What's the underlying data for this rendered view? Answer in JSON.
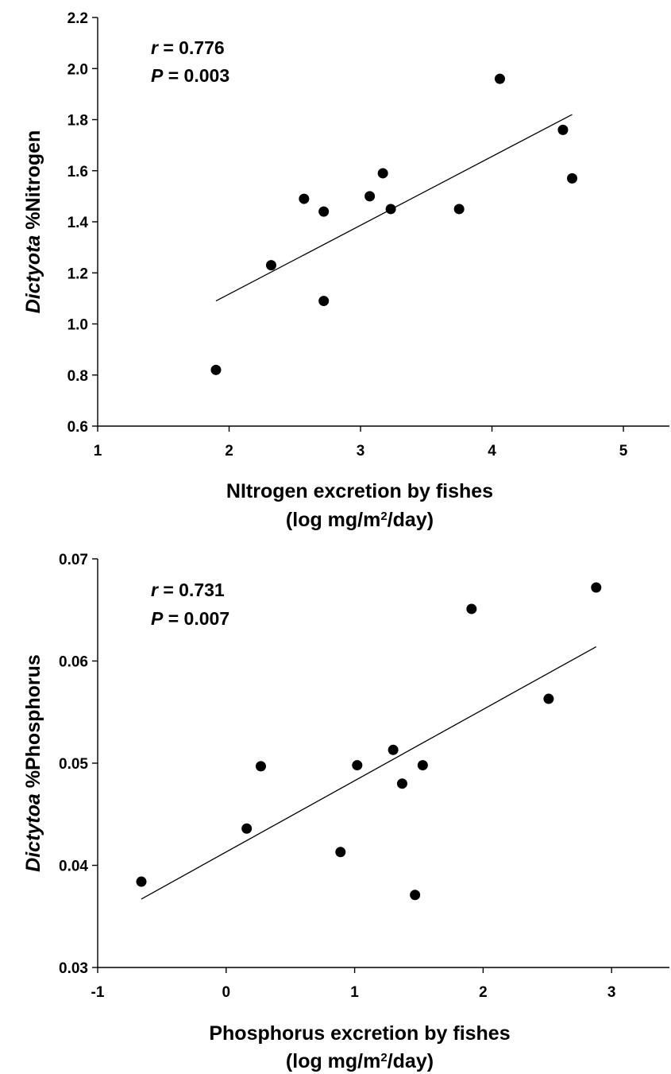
{
  "chart_data": [
    {
      "type": "scatter",
      "title": "",
      "xlabel_line1": "NItrogen excretion by fishes",
      "xlabel_line2_pre": "(log mg/m",
      "xlabel_line2_sup": "2",
      "xlabel_line2_post": "/day)",
      "ylabel_italic": "Dictyota",
      "ylabel_rest": " %Nitrogen",
      "xlim": [
        1,
        5.35
      ],
      "ylim": [
        0.6,
        2.2
      ],
      "xticks": [
        1,
        2,
        3,
        4,
        5
      ],
      "yticks": [
        0.6,
        0.8,
        1.0,
        1.2,
        1.4,
        1.6,
        1.8,
        2.0,
        2.2
      ],
      "xtick_labels": [
        "1",
        "2",
        "3",
        "4",
        "5"
      ],
      "ytick_labels": [
        "0.6",
        "0.8",
        "1.0",
        "1.2",
        "1.4",
        "1.6",
        "1.8",
        "2.0",
        "2.2"
      ],
      "points": [
        {
          "x": 1.9,
          "y": 0.82
        },
        {
          "x": 2.32,
          "y": 1.23
        },
        {
          "x": 2.57,
          "y": 1.49
        },
        {
          "x": 2.72,
          "y": 1.44
        },
        {
          "x": 2.72,
          "y": 1.09
        },
        {
          "x": 3.07,
          "y": 1.5
        },
        {
          "x": 3.17,
          "y": 1.59
        },
        {
          "x": 3.23,
          "y": 1.45
        },
        {
          "x": 3.75,
          "y": 1.45
        },
        {
          "x": 4.06,
          "y": 1.96
        },
        {
          "x": 4.54,
          "y": 1.76
        },
        {
          "x": 4.61,
          "y": 1.57
        }
      ],
      "regression": {
        "x": [
          1.9,
          4.61
        ],
        "y": [
          1.09,
          1.82
        ]
      },
      "annotation": {
        "r_symbol": "r",
        "r_value": " = 0.776",
        "p_symbol": "P",
        "p_value": " = 0.003"
      }
    },
    {
      "type": "scatter",
      "title": "",
      "xlabel_line1": "Phosphorus excretion by fishes",
      "xlabel_line2_pre": "(log mg/m",
      "xlabel_line2_sup": "2",
      "xlabel_line2_post": "/day)",
      "ylabel_italic": "Dictytoa",
      "ylabel_rest": " %Phosphorus",
      "xlim": [
        -1,
        3.45
      ],
      "ylim": [
        0.03,
        0.07
      ],
      "xticks": [
        -1,
        0,
        1,
        2,
        3
      ],
      "yticks": [
        0.03,
        0.04,
        0.05,
        0.06,
        0.07
      ],
      "xtick_labels": [
        "-1",
        "0",
        "1",
        "2",
        "3"
      ],
      "ytick_labels": [
        "0.03",
        "0.04",
        "0.05",
        "0.06",
        "0.07"
      ],
      "points": [
        {
          "x": -0.66,
          "y": 0.0384
        },
        {
          "x": 0.16,
          "y": 0.0436
        },
        {
          "x": 0.27,
          "y": 0.0497
        },
        {
          "x": 0.89,
          "y": 0.0413
        },
        {
          "x": 1.02,
          "y": 0.0498
        },
        {
          "x": 1.3,
          "y": 0.0513
        },
        {
          "x": 1.37,
          "y": 0.048
        },
        {
          "x": 1.47,
          "y": 0.0371
        },
        {
          "x": 1.53,
          "y": 0.0498
        },
        {
          "x": 1.91,
          "y": 0.0651
        },
        {
          "x": 2.51,
          "y": 0.0563
        },
        {
          "x": 2.88,
          "y": 0.0672
        }
      ],
      "regression": {
        "x": [
          -0.66,
          2.88
        ],
        "y": [
          0.0367,
          0.0614
        ]
      },
      "annotation": {
        "r_symbol": "r",
        "r_value": " = 0.731",
        "p_symbol": "P",
        "p_value": " = 0.007"
      }
    }
  ]
}
